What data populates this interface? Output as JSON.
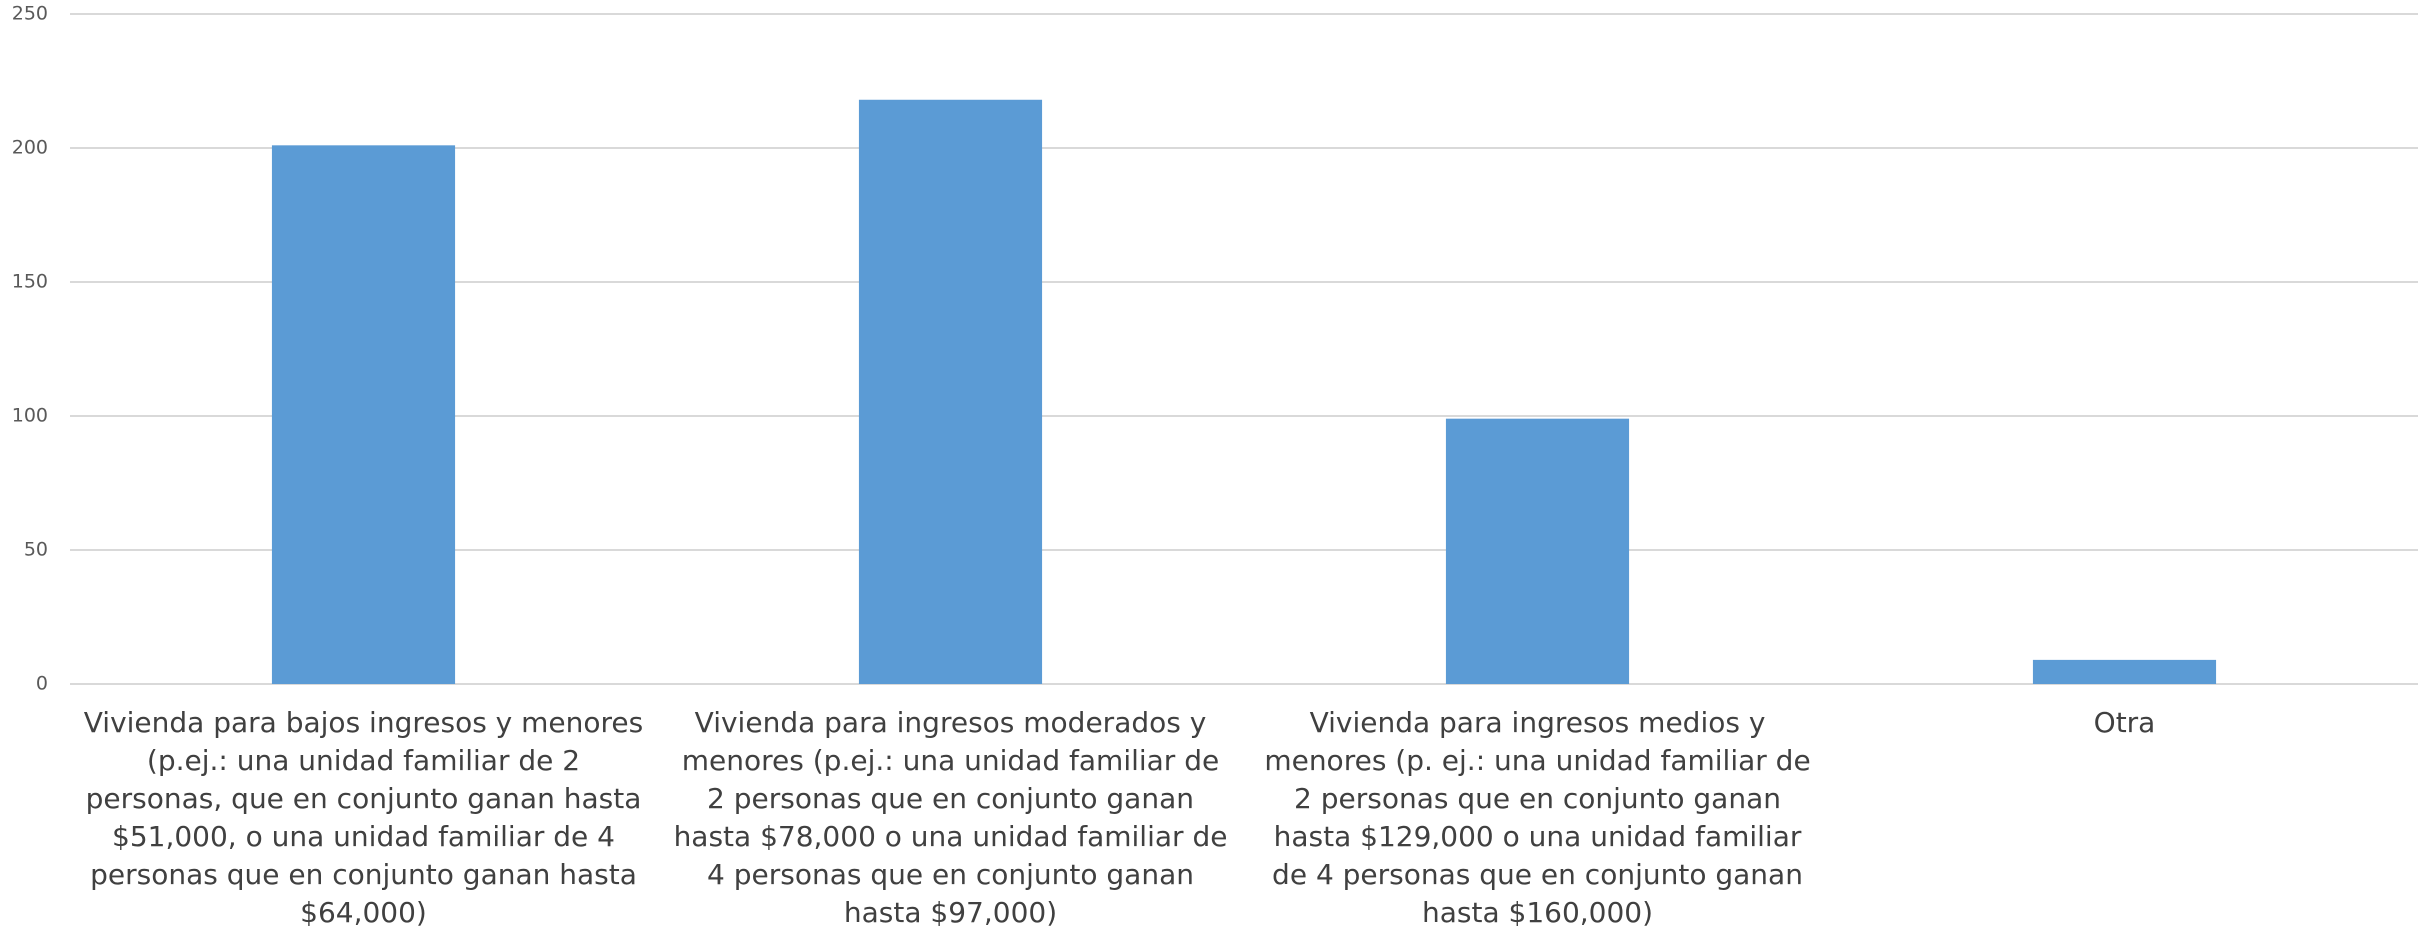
{
  "chart_data": {
    "type": "bar",
    "categories": [
      "Vivienda para bajos ingresos y menores (p.ej.: una unidad familiar de 2 personas, que en conjunto ganan hasta $51,000, o una unidad familiar de 4 personas que en conjunto ganan hasta $64,000)",
      "Vivienda para ingresos moderados y menores (p.ej.: una unidad familiar de 2 personas que en conjunto ganan hasta $78,000 o una unidad familiar de 4 personas que en conjunto ganan hasta $97,000)",
      "Vivienda para ingresos medios y menores (p. ej.: una unidad familiar de 2 personas que en conjunto ganan hasta $129,000 o una unidad familiar de 4 personas que en conjunto ganan hasta $160,000)",
      "Otra"
    ],
    "values": [
      201,
      218,
      99,
      9
    ],
    "color": "#5b9bd5",
    "ylim": [
      0,
      250
    ],
    "yticks": [
      0,
      50,
      100,
      150,
      200,
      250
    ],
    "grid": true
  }
}
